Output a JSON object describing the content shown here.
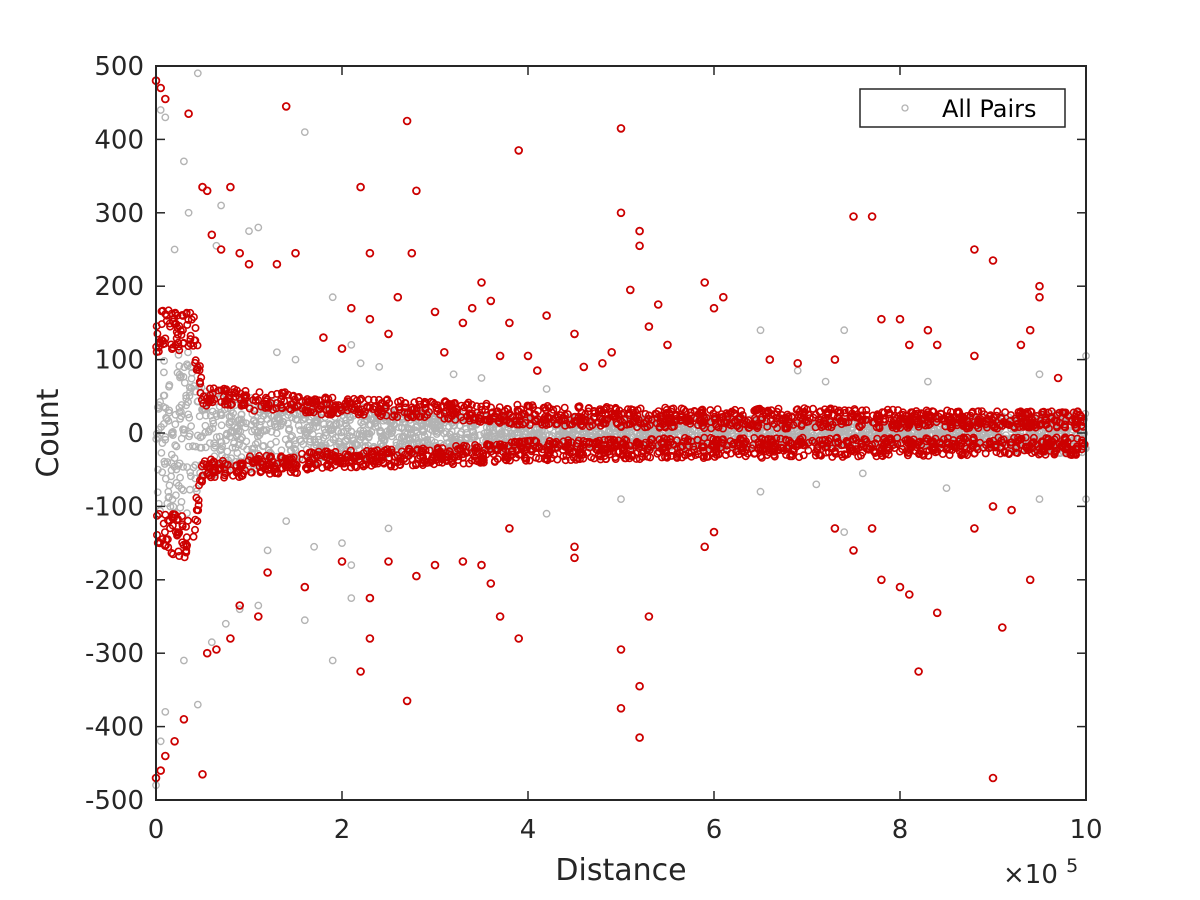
{
  "chart_data": {
    "type": "scatter",
    "title": "",
    "xlabel": "Distance",
    "ylabel": "Count",
    "x_multiplier_label": "×10",
    "x_multiplier_exponent": "5",
    "xlim": [
      0,
      10
    ],
    "ylim": [
      -500,
      500
    ],
    "x_ticks": [
      0,
      2,
      4,
      6,
      8,
      10
    ],
    "x_tick_labels": [
      "0",
      "2",
      "4",
      "6",
      "8",
      "10"
    ],
    "y_ticks": [
      500,
      400,
      300,
      200,
      100,
      0,
      -100,
      -200,
      -300,
      -400,
      -500
    ],
    "y_tick_labels": [
      "500",
      "400",
      "300",
      "200",
      "100",
      "0",
      "-100",
      "-200",
      "-300",
      "-400",
      "-500"
    ],
    "grid": false,
    "legend_position": "top-right",
    "legend": {
      "entries": [
        "All Pairs"
      ]
    },
    "colors": {
      "all_pairs": "#b3b3b3",
      "highlighted": "#cc0000",
      "axis": "#262626"
    },
    "series": [
      {
        "name": "All Pairs",
        "color": "#b3b3b3",
        "band_x": [
          0,
          0.4,
          0.5,
          0.6,
          0.7,
          0.8,
          0.9,
          1.0,
          1.1,
          1.2,
          1.4,
          1.6,
          1.8,
          2.0,
          2.2,
          2.5,
          3.0,
          3.5,
          4.0,
          4.5,
          5.0,
          6.0,
          7.0,
          8.0,
          9.0,
          10.0
        ],
        "band_halfwidth": [
          110,
          110,
          58,
          58,
          58,
          56,
          52,
          50,
          48,
          46,
          44,
          42,
          40,
          38,
          36,
          32,
          28,
          26,
          22,
          22,
          20,
          20,
          18,
          16,
          22,
          30
        ],
        "outliers": [
          [
            0.0,
            480
          ],
          [
            0.05,
            440
          ],
          [
            0.1,
            430
          ],
          [
            0.45,
            490
          ],
          [
            0.3,
            370
          ],
          [
            0.35,
            300
          ],
          [
            0.2,
            250
          ],
          [
            0.7,
            310
          ],
          [
            0.65,
            255
          ],
          [
            1.1,
            280
          ],
          [
            1.0,
            275
          ],
          [
            1.6,
            410
          ],
          [
            1.9,
            185
          ],
          [
            1.3,
            110
          ],
          [
            1.5,
            100
          ],
          [
            2.1,
            120
          ],
          [
            2.2,
            95
          ],
          [
            2.4,
            90
          ],
          [
            3.2,
            80
          ],
          [
            3.5,
            75
          ],
          [
            4.2,
            60
          ],
          [
            6.5,
            140
          ],
          [
            6.9,
            85
          ],
          [
            7.4,
            140
          ],
          [
            7.2,
            70
          ],
          [
            8.3,
            70
          ],
          [
            9.5,
            80
          ],
          [
            10.0,
            105
          ],
          [
            0.0,
            -480
          ],
          [
            0.05,
            -420
          ],
          [
            0.1,
            -380
          ],
          [
            0.45,
            -370
          ],
          [
            0.3,
            -310
          ],
          [
            0.6,
            -285
          ],
          [
            0.75,
            -260
          ],
          [
            0.9,
            -240
          ],
          [
            1.1,
            -235
          ],
          [
            1.2,
            -160
          ],
          [
            1.4,
            -120
          ],
          [
            1.6,
            -255
          ],
          [
            1.7,
            -155
          ],
          [
            1.9,
            -310
          ],
          [
            2.0,
            -150
          ],
          [
            2.1,
            -225
          ],
          [
            2.1,
            -180
          ],
          [
            2.5,
            -130
          ],
          [
            4.2,
            -110
          ],
          [
            5.0,
            -90
          ],
          [
            6.5,
            -80
          ],
          [
            7.1,
            -70
          ],
          [
            7.4,
            -135
          ],
          [
            7.6,
            -55
          ],
          [
            8.5,
            -75
          ],
          [
            9.5,
            -90
          ],
          [
            10.0,
            -90
          ],
          [
            9.0,
            -100
          ]
        ]
      },
      {
        "name": "",
        "color": "#cc0000",
        "inner_gap": [
          0,
          0.4,
          0.5,
          0.9,
          1.0,
          1.5,
          1.6,
          2.0,
          2.5,
          3.0,
          4.0,
          5.0,
          6.0,
          7.0,
          8.0,
          9.0,
          10.0
        ],
        "inner_gap_halfwidth": [
          110,
          110,
          36,
          36,
          30,
          30,
          26,
          24,
          22,
          20,
          10,
          8,
          6,
          6,
          6,
          6,
          6
        ],
        "outer_halfwidth": [
          170,
          170,
          62,
          60,
          56,
          56,
          50,
          48,
          46,
          44,
          38,
          36,
          34,
          34,
          32,
          30,
          30
        ],
        "outliers": [
          [
            0.0,
            480
          ],
          [
            0.05,
            470
          ],
          [
            0.1,
            455
          ],
          [
            0.35,
            435
          ],
          [
            0.5,
            335
          ],
          [
            0.55,
            330
          ],
          [
            0.8,
            335
          ],
          [
            0.6,
            270
          ],
          [
            0.7,
            250
          ],
          [
            0.9,
            245
          ],
          [
            1.0,
            230
          ],
          [
            1.3,
            230
          ],
          [
            1.4,
            445
          ],
          [
            1.5,
            245
          ],
          [
            1.8,
            130
          ],
          [
            2.0,
            115
          ],
          [
            2.1,
            170
          ],
          [
            2.2,
            335
          ],
          [
            2.3,
            245
          ],
          [
            2.3,
            155
          ],
          [
            2.5,
            135
          ],
          [
            2.6,
            185
          ],
          [
            2.7,
            425
          ],
          [
            2.75,
            245
          ],
          [
            2.8,
            330
          ],
          [
            3.0,
            165
          ],
          [
            3.1,
            110
          ],
          [
            3.3,
            150
          ],
          [
            3.4,
            170
          ],
          [
            3.5,
            205
          ],
          [
            3.6,
            180
          ],
          [
            3.7,
            105
          ],
          [
            3.8,
            150
          ],
          [
            3.9,
            385
          ],
          [
            4.0,
            105
          ],
          [
            4.1,
            85
          ],
          [
            4.2,
            160
          ],
          [
            4.5,
            135
          ],
          [
            4.6,
            90
          ],
          [
            4.8,
            95
          ],
          [
            4.9,
            110
          ],
          [
            5.0,
            300
          ],
          [
            5.0,
            415
          ],
          [
            5.1,
            195
          ],
          [
            5.2,
            255
          ],
          [
            5.2,
            275
          ],
          [
            5.3,
            145
          ],
          [
            5.4,
            175
          ],
          [
            5.5,
            120
          ],
          [
            5.9,
            205
          ],
          [
            6.0,
            170
          ],
          [
            6.1,
            185
          ],
          [
            6.6,
            100
          ],
          [
            6.9,
            95
          ],
          [
            7.3,
            100
          ],
          [
            7.5,
            295
          ],
          [
            7.7,
            295
          ],
          [
            7.8,
            155
          ],
          [
            8.0,
            155
          ],
          [
            8.1,
            120
          ],
          [
            8.3,
            140
          ],
          [
            8.4,
            120
          ],
          [
            8.8,
            105
          ],
          [
            8.8,
            250
          ],
          [
            9.0,
            235
          ],
          [
            9.3,
            120
          ],
          [
            9.5,
            185
          ],
          [
            9.5,
            200
          ],
          [
            9.4,
            140
          ],
          [
            9.7,
            75
          ],
          [
            0.0,
            -470
          ],
          [
            0.05,
            -460
          ],
          [
            0.1,
            -440
          ],
          [
            0.2,
            -420
          ],
          [
            0.3,
            -390
          ],
          [
            0.5,
            -465
          ],
          [
            0.55,
            -300
          ],
          [
            0.65,
            -295
          ],
          [
            0.8,
            -280
          ],
          [
            0.9,
            -235
          ],
          [
            1.1,
            -250
          ],
          [
            1.2,
            -190
          ],
          [
            1.6,
            -210
          ],
          [
            2.0,
            -175
          ],
          [
            2.2,
            -325
          ],
          [
            2.3,
            -280
          ],
          [
            2.3,
            -225
          ],
          [
            2.5,
            -175
          ],
          [
            2.7,
            -365
          ],
          [
            2.8,
            -195
          ],
          [
            3.0,
            -180
          ],
          [
            3.3,
            -175
          ],
          [
            3.5,
            -180
          ],
          [
            3.6,
            -205
          ],
          [
            3.7,
            -250
          ],
          [
            3.8,
            -130
          ],
          [
            3.9,
            -280
          ],
          [
            4.5,
            -155
          ],
          [
            4.5,
            -170
          ],
          [
            5.0,
            -295
          ],
          [
            5.0,
            -375
          ],
          [
            5.2,
            -345
          ],
          [
            5.2,
            -415
          ],
          [
            5.3,
            -250
          ],
          [
            5.9,
            -155
          ],
          [
            6.0,
            -135
          ],
          [
            7.3,
            -130
          ],
          [
            7.5,
            -160
          ],
          [
            7.7,
            -130
          ],
          [
            7.8,
            -200
          ],
          [
            8.0,
            -210
          ],
          [
            8.1,
            -220
          ],
          [
            8.2,
            -325
          ],
          [
            8.4,
            -245
          ],
          [
            8.8,
            -130
          ],
          [
            9.0,
            -470
          ],
          [
            9.1,
            -265
          ],
          [
            9.4,
            -200
          ],
          [
            9.2,
            -105
          ],
          [
            9.0,
            -100
          ]
        ]
      }
    ]
  }
}
